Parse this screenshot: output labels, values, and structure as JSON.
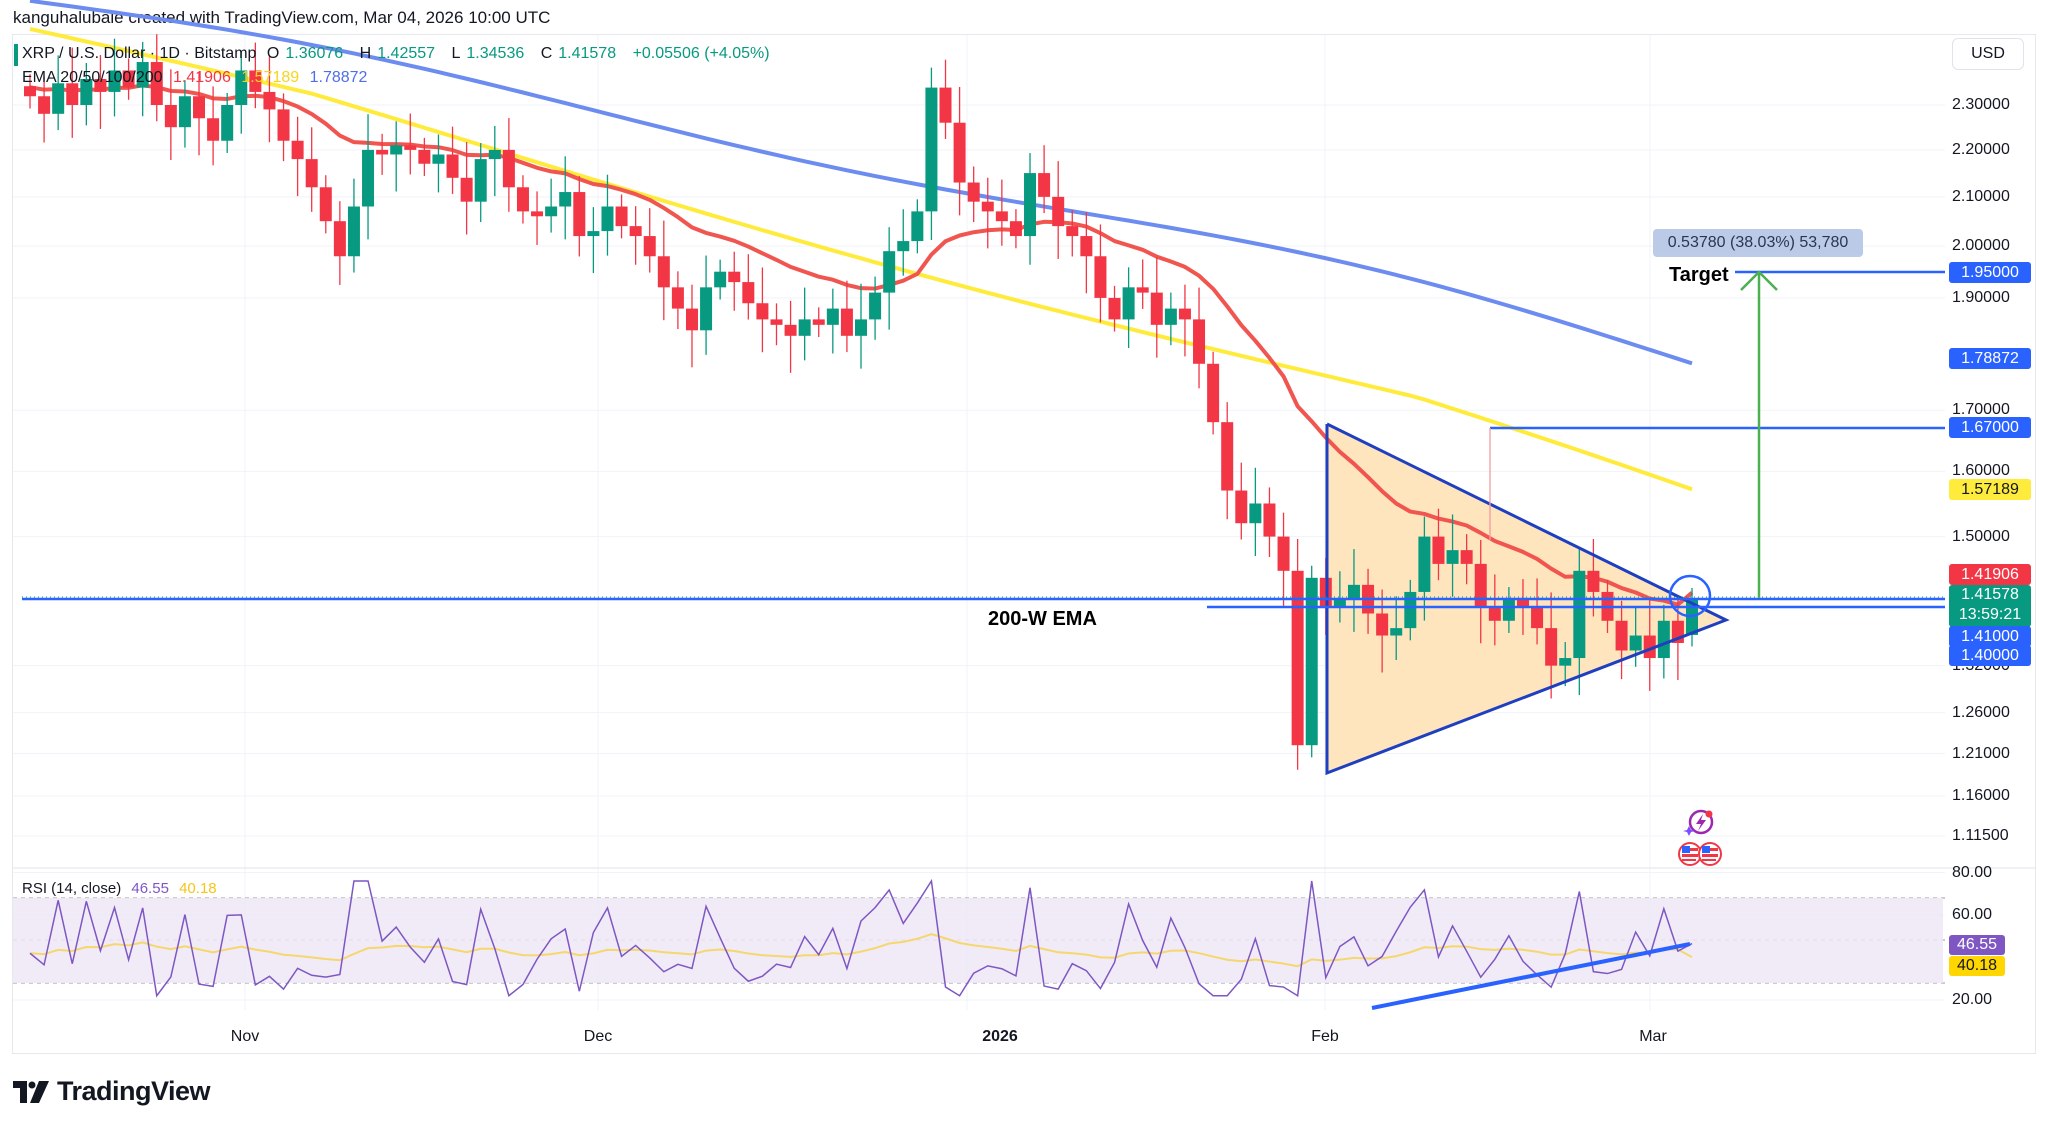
{
  "attribution": "kanguhalubale created with TradingView.com, Mar 04, 2026 10:00 UTC",
  "legend": {
    "symbol": "XRP / U.S. Dollar · 1D · Bitstamp",
    "open_label": "O",
    "open": "1.36076",
    "high_label": "H",
    "high": "1.42557",
    "low_label": "L",
    "low": "1.34536",
    "close_label": "C",
    "close": "1.41578",
    "change": "+0.05506 (+4.05%)",
    "ema_label": "EMA 20/50/100/200",
    "ema20": "1.41906",
    "ema50": "1.57189",
    "ema100": "1.78872"
  },
  "currency_button": "USD",
  "colors": {
    "up": "#089981",
    "down": "#f23645",
    "ema20": "#f0564f",
    "ema50": "#ffeb3b",
    "ema100": "#6c8cf0",
    "drawing_blue": "#2962ff",
    "triangle_fill": "#ffe0b2",
    "target_arrow": "#4caf50",
    "rsi_line": "#7e57c2",
    "rsi_ma": "#f5d76e",
    "rsi_band": "#ede7f6"
  },
  "price_axis": {
    "ticks": [
      "2.30000",
      "2.20000",
      "2.10000",
      "2.00000",
      "1.90000",
      "1.70000",
      "1.60000",
      "1.50000",
      "1.32000",
      "1.26000",
      "1.21000",
      "1.16000",
      "1.11500"
    ],
    "tags": [
      {
        "value": "1.95000",
        "color": "#2962ff",
        "text": "#ffffff"
      },
      {
        "value": "1.78872",
        "color": "#2962ff",
        "text": "#ffffff"
      },
      {
        "value": "1.67000",
        "color": "#2962ff",
        "text": "#ffffff"
      },
      {
        "value": "1.57189",
        "color": "#ffeb3b",
        "text": "#131722"
      },
      {
        "value": "1.41906",
        "color": "#f23645",
        "text": "#ffffff"
      },
      {
        "value": "1.41578",
        "sub": "13:59:21",
        "color": "#089981",
        "text": "#ffffff"
      },
      {
        "value": "1.41000",
        "color": "#2962ff",
        "text": "#ffffff"
      },
      {
        "value": "1.40000",
        "color": "#2962ff",
        "text": "#ffffff"
      }
    ]
  },
  "rsi": {
    "label": "RSI (14, close)",
    "value": "46.55",
    "ma_value": "40.18",
    "ticks": [
      "80.00",
      "60.00",
      "20.00"
    ]
  },
  "time_axis": [
    "Nov",
    "Dec",
    "2026",
    "Feb",
    "Mar"
  ],
  "annotations": {
    "ema200_label": "200-W EMA",
    "target_label": "Target",
    "measure": "0.53780 (38.03%) 53,780"
  },
  "brand": "TradingView",
  "chart_data": {
    "type": "candlestick",
    "title": "XRP / U.S. Dollar · 1D · Bitstamp",
    "ylabel": "USD",
    "ylim": [
      1.1,
      2.4
    ],
    "x_ticks": [
      "Nov",
      "Dec",
      "2026",
      "Feb",
      "Mar"
    ],
    "last_bar": {
      "open": 1.36076,
      "high": 1.42557,
      "low": 1.34536,
      "close": 1.41578,
      "change": 0.05506,
      "change_pct": 4.05
    },
    "indicators": {
      "EMA20": 1.41906,
      "EMA50": 1.57189,
      "EMA100": 1.78872,
      "RSI14": 46.55,
      "RSI_MA": 40.18
    },
    "horizontal_levels": [
      1.95,
      1.67,
      1.41,
      1.4
    ],
    "pattern": "symmetrical triangle (Feb–Mar 2026)",
    "target": {
      "price": 1.95,
      "gain": 0.5378,
      "gain_pct": 38.03
    },
    "closes_approx": [
      2.32,
      2.28,
      2.35,
      2.3,
      2.36,
      2.33,
      2.38,
      2.34,
      2.4,
      2.3,
      2.25,
      2.32,
      2.27,
      2.22,
      2.3,
      2.38,
      2.33,
      2.29,
      2.22,
      2.18,
      2.12,
      2.05,
      1.98,
      2.08,
      2.2,
      2.19,
      2.21,
      2.2,
      2.17,
      2.19,
      2.14,
      2.09,
      2.18,
      2.2,
      2.12,
      2.07,
      2.06,
      2.08,
      2.11,
      2.02,
      2.03,
      2.08,
      2.04,
      2.02,
      1.98,
      1.92,
      1.88,
      1.84,
      1.92,
      1.95,
      1.93,
      1.89,
      1.86,
      1.85,
      1.83,
      1.86,
      1.85,
      1.88,
      1.83,
      1.86,
      1.91,
      1.99,
      2.01,
      2.07,
      2.34,
      2.26,
      2.13,
      2.09,
      2.07,
      2.05,
      2.02,
      2.15,
      2.1,
      2.04,
      2.02,
      1.98,
      1.9,
      1.86,
      1.92,
      1.91,
      1.85,
      1.88,
      1.86,
      1.78,
      1.68,
      1.57,
      1.52,
      1.55,
      1.5,
      1.45,
      1.22,
      1.44,
      1.4,
      1.41,
      1.43,
      1.39,
      1.36,
      1.37,
      1.42,
      1.5,
      1.46,
      1.48,
      1.46,
      1.4,
      1.38,
      1.41,
      1.4,
      1.37,
      1.32,
      1.33,
      1.45,
      1.42,
      1.38,
      1.34,
      1.36,
      1.33,
      1.38,
      1.35,
      1.41
    ]
  }
}
